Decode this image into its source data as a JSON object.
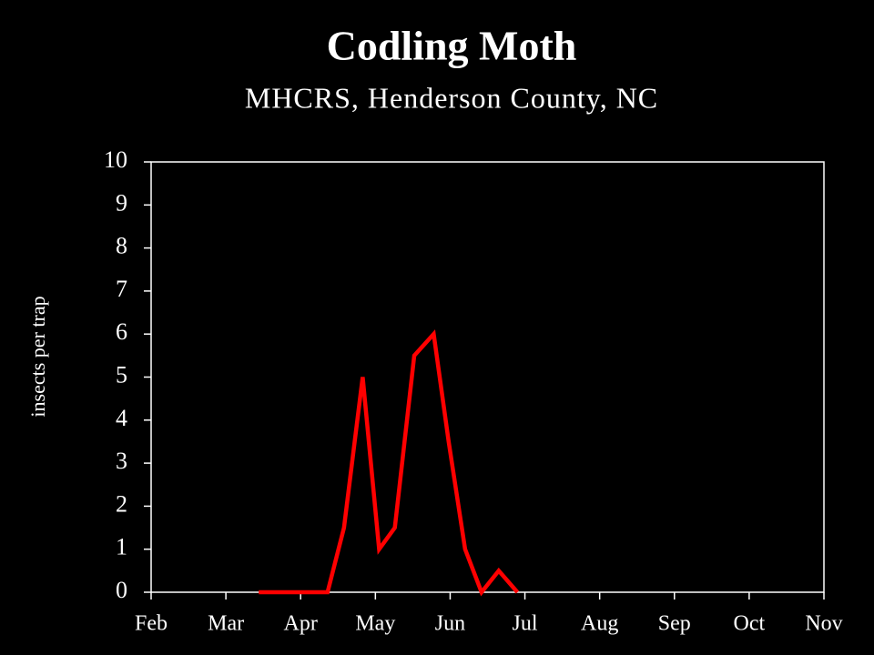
{
  "chart_data": {
    "type": "line",
    "title": "Codling Moth",
    "subtitle": "MHCRS, Henderson County, NC",
    "y_label": "insects per trap",
    "x": [
      3.44,
      4.36,
      4.58,
      4.83,
      5.05,
      5.26,
      5.52,
      5.78,
      5.98,
      6.2,
      6.42,
      6.65,
      6.9
    ],
    "series": [
      {
        "name": "Codling Moth",
        "color": "#ff0000",
        "values": [
          0,
          0,
          1.5,
          5,
          1,
          1.5,
          5.5,
          6,
          3.5,
          1,
          0,
          0.5,
          0
        ]
      }
    ],
    "xlim": [
      2,
      11
    ],
    "xticks": [
      {
        "value": 2,
        "label": "Feb"
      },
      {
        "value": 3,
        "label": "Mar"
      },
      {
        "value": 4,
        "label": "Apr"
      },
      {
        "value": 5,
        "label": "May"
      },
      {
        "value": 6,
        "label": "Jun"
      },
      {
        "value": 7,
        "label": "Jul"
      },
      {
        "value": 8,
        "label": "Aug"
      },
      {
        "value": 9,
        "label": "Sep"
      },
      {
        "value": 10,
        "label": "Oct"
      },
      {
        "value": 11,
        "label": "Nov"
      }
    ],
    "ylim": [
      0,
      10
    ],
    "yticks": [
      0,
      1,
      2,
      3,
      4,
      5,
      6,
      7,
      8,
      9,
      10
    ]
  }
}
